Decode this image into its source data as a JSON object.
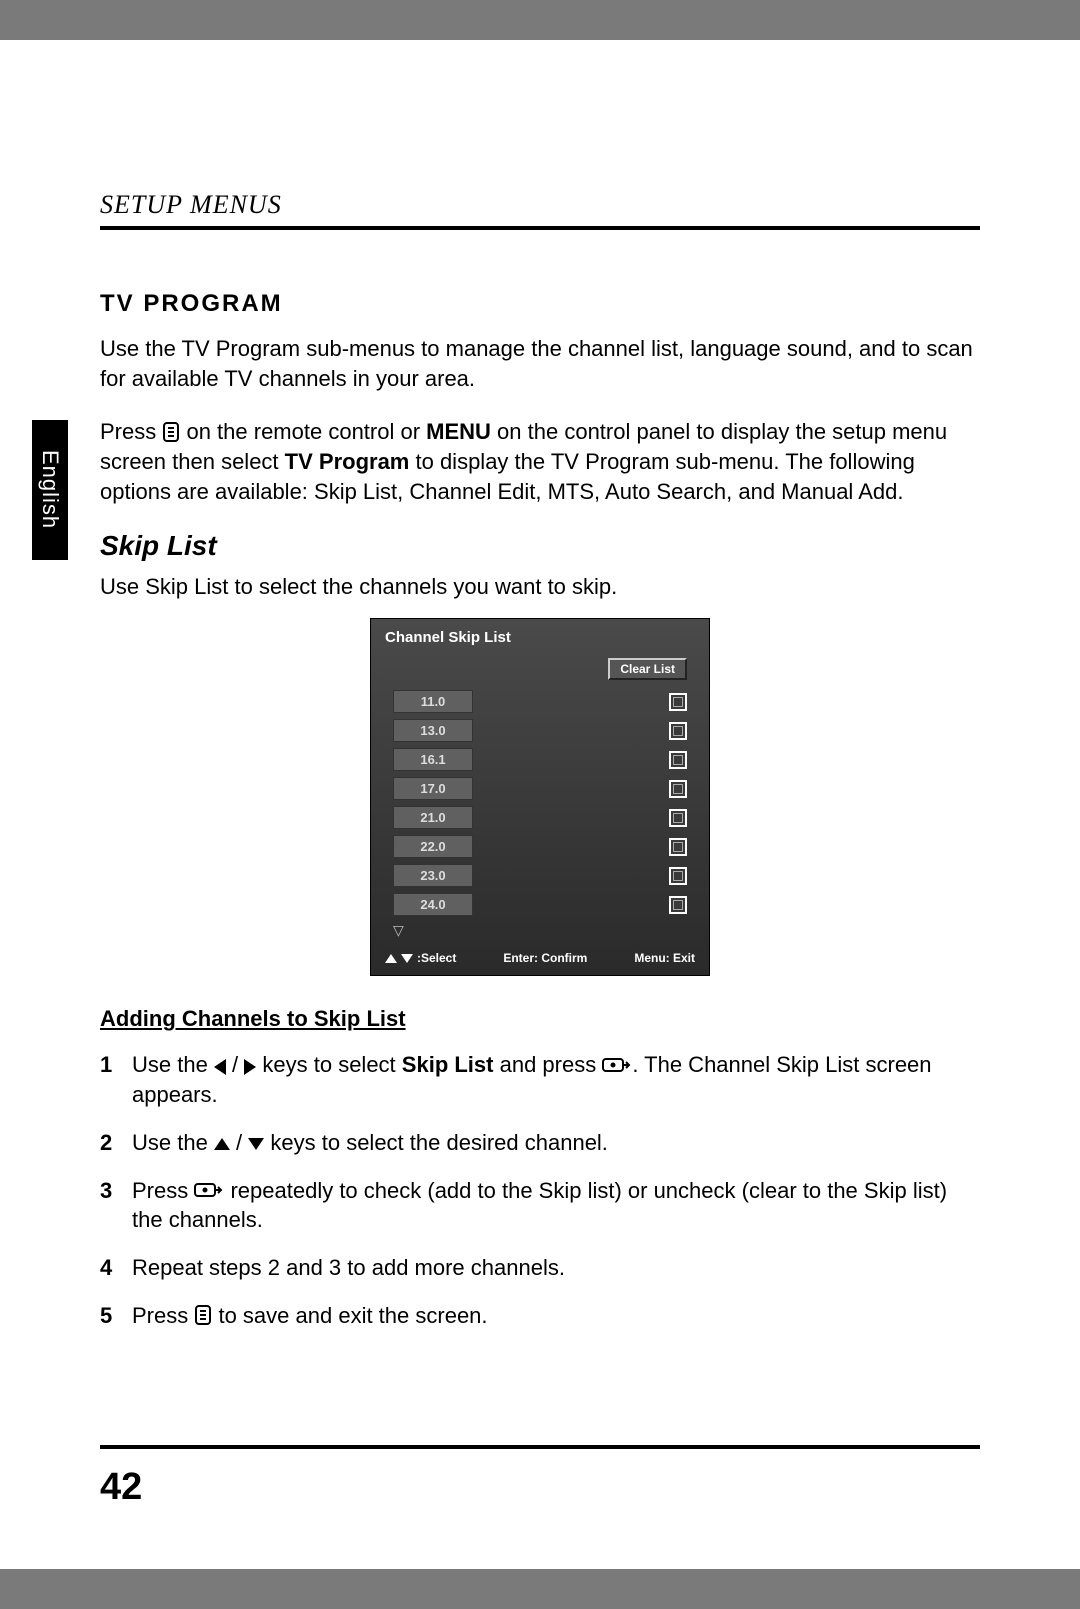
{
  "header": {
    "title": "SETUP MENUS"
  },
  "lang_tab": "English",
  "section": {
    "heading": "TV PROGRAM",
    "p1": "Use the TV Program sub-menus to manage the channel list, language sound, and to scan for available TV channels in your area.",
    "p2_pre": "Press ",
    "p2_mid1": " on the remote control or ",
    "p2_menu": "MENU",
    "p2_mid2": " on the control panel to display the setup menu screen then select ",
    "p2_tvp": "TV Program",
    "p2_post": " to display the TV Program sub-menu. The following options are available: Skip List, Channel Edit, MTS, Auto Search, and Manual Add."
  },
  "skiplist": {
    "heading": "Skip List",
    "intro": "Use Skip List to select the channels you want to skip."
  },
  "osd": {
    "title": "Channel Skip List",
    "clear_btn": "Clear List",
    "channels": [
      "11.0",
      "13.0",
      "16.1",
      "17.0",
      "21.0",
      "22.0",
      "23.0",
      "24.0"
    ],
    "footer_select": ":Select",
    "footer_confirm": "Enter: Confirm",
    "footer_exit": "Menu: Exit"
  },
  "instructions": {
    "title": "Adding Channels to Skip List",
    "step1_pre": "Use the ",
    "step1_mid": " keys to select ",
    "step1_bold": "Skip List",
    "step1_mid2": " and press ",
    "step1_post": ". The Channel Skip List screen appears.",
    "step2_pre": "Use the ",
    "step2_post": " keys to select the desired channel.",
    "step3_pre": "Press ",
    "step3_post": " repeatedly to check (add to the Skip list) or uncheck (clear to the Skip list) the channels.",
    "step4": "Repeat steps 2 and 3 to add more channels.",
    "step5_pre": "Press ",
    "step5_post": " to save and exit the screen."
  },
  "page_number": "42"
}
